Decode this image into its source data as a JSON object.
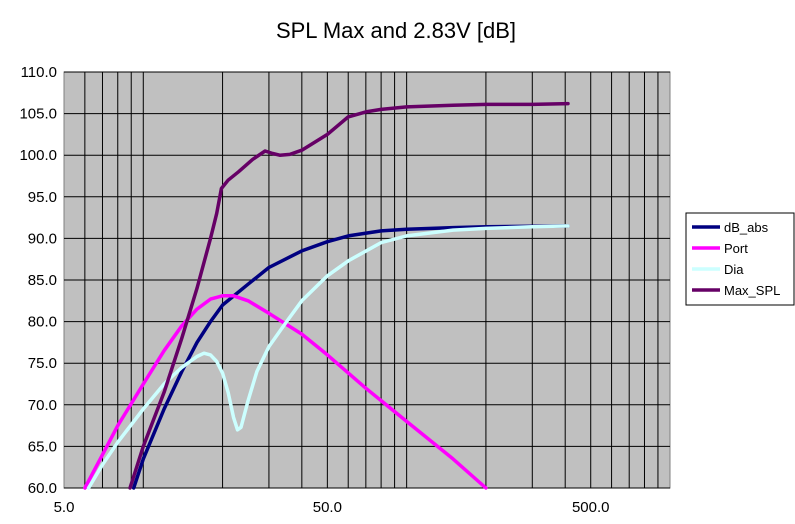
{
  "chart_data": {
    "type": "line",
    "title": "SPL Max and 2.83V [dB]",
    "xlabel": "",
    "ylabel": "",
    "x_scale": "log",
    "xlim": [
      5,
      1000
    ],
    "ylim": [
      60,
      110
    ],
    "x_tick_labels": [
      "5.0",
      "50.0",
      "500.0"
    ],
    "y_tick_labels": [
      "60.0",
      "65.0",
      "70.0",
      "75.0",
      "80.0",
      "85.0",
      "90.0",
      "95.0",
      "100.0",
      "105.0",
      "110.0"
    ],
    "grid": true,
    "plot_background": "#c0c0c0",
    "legend_position": "right",
    "series": [
      {
        "name": "dB_abs",
        "color": "#000080",
        "points": [
          [
            9.2,
            60
          ],
          [
            10,
            63.5
          ],
          [
            12,
            69.5
          ],
          [
            14,
            74
          ],
          [
            16,
            77.5
          ],
          [
            18,
            80
          ],
          [
            20,
            82
          ],
          [
            25,
            84.5
          ],
          [
            30,
            86.5
          ],
          [
            40,
            88.5
          ],
          [
            50,
            89.6
          ],
          [
            60,
            90.3
          ],
          [
            80,
            90.9
          ],
          [
            100,
            91.1
          ],
          [
            150,
            91.3
          ],
          [
            200,
            91.4
          ],
          [
            300,
            91.45
          ],
          [
            410,
            91.5
          ]
        ]
      },
      {
        "name": "Port",
        "color": "#ff00ff",
        "points": [
          [
            6,
            60
          ],
          [
            7,
            64
          ],
          [
            8,
            67.5
          ],
          [
            10,
            72.5
          ],
          [
            12,
            76.5
          ],
          [
            14,
            79.5
          ],
          [
            16,
            81.5
          ],
          [
            18,
            82.7
          ],
          [
            20,
            83.1
          ],
          [
            22,
            83.1
          ],
          [
            25,
            82.5
          ],
          [
            30,
            81
          ],
          [
            40,
            78.5
          ],
          [
            50,
            76
          ],
          [
            70,
            72
          ],
          [
            100,
            68
          ],
          [
            150,
            63.5
          ],
          [
            200,
            60
          ]
        ]
      },
      {
        "name": "Dia",
        "color": "#ccffff",
        "points": [
          [
            6.2,
            60
          ],
          [
            7,
            62.8
          ],
          [
            8,
            65.5
          ],
          [
            10,
            69.5
          ],
          [
            12,
            72.5
          ],
          [
            14,
            74.5
          ],
          [
            16,
            75.8
          ],
          [
            17,
            76.2
          ],
          [
            18,
            76
          ],
          [
            19,
            75.2
          ],
          [
            20,
            73.8
          ],
          [
            21,
            71.5
          ],
          [
            22,
            68.5
          ],
          [
            22.8,
            67
          ],
          [
            23.5,
            67.3
          ],
          [
            25,
            70.5
          ],
          [
            27,
            74
          ],
          [
            30,
            77
          ],
          [
            35,
            80
          ],
          [
            40,
            82.5
          ],
          [
            50,
            85.5
          ],
          [
            60,
            87.3
          ],
          [
            80,
            89.5
          ],
          [
            100,
            90.3
          ],
          [
            150,
            91
          ],
          [
            200,
            91.2
          ],
          [
            300,
            91.4
          ],
          [
            410,
            91.5
          ]
        ]
      },
      {
        "name": "Max_SPL",
        "color": "#660066",
        "points": [
          [
            8.9,
            60
          ],
          [
            10,
            65
          ],
          [
            12,
            71.5
          ],
          [
            14,
            78
          ],
          [
            16,
            84
          ],
          [
            18,
            90
          ],
          [
            19,
            93
          ],
          [
            19.8,
            96
          ],
          [
            21,
            97
          ],
          [
            23,
            98
          ],
          [
            26,
            99.5
          ],
          [
            29,
            100.5
          ],
          [
            31,
            100.2
          ],
          [
            33,
            100
          ],
          [
            36,
            100.1
          ],
          [
            40,
            100.6
          ],
          [
            50,
            102.5
          ],
          [
            60,
            104.6
          ],
          [
            70,
            105.2
          ],
          [
            80,
            105.5
          ],
          [
            100,
            105.8
          ],
          [
            150,
            106
          ],
          [
            200,
            106.1
          ],
          [
            300,
            106.1
          ],
          [
            410,
            106.2
          ]
        ]
      }
    ]
  }
}
